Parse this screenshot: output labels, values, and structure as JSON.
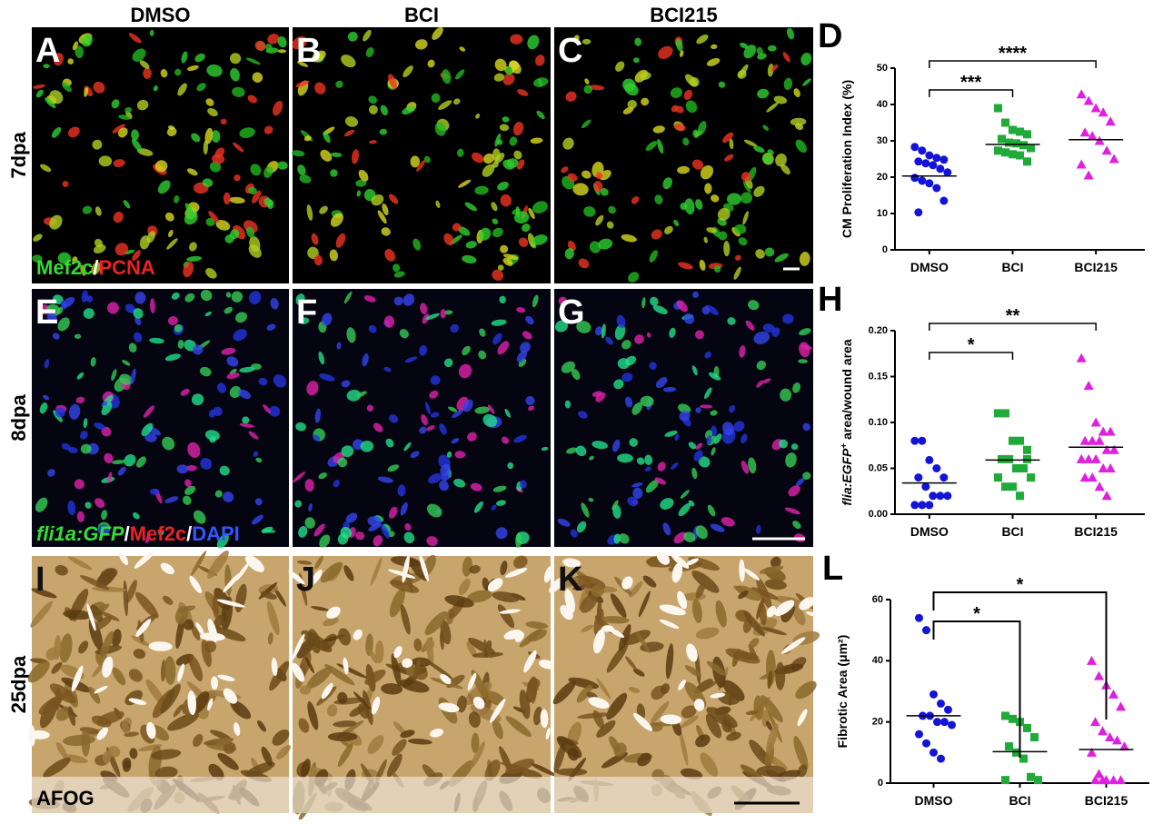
{
  "column_headers": [
    "DMSO",
    "BCI",
    "BCI215"
  ],
  "row_labels": [
    "7dpa",
    "8dpa",
    "25dpa"
  ],
  "image_panels": [
    "A",
    "B",
    "C",
    "E",
    "F",
    "G",
    "I",
    "J",
    "K"
  ],
  "stain_labels": [
    [
      {
        "text": "Mef2c",
        "color": "#33dd33"
      },
      {
        "text": "/",
        "color": "#ffffff"
      },
      {
        "text": "PCNA",
        "color": "#ee2222"
      }
    ],
    [
      {
        "text": "fli1a:GFP",
        "color": "#33dd33",
        "italic": true
      },
      {
        "text": "/",
        "color": "#ffffff"
      },
      {
        "text": "Mef2c",
        "color": "#ee2222"
      },
      {
        "text": "/",
        "color": "#ffffff"
      },
      {
        "text": "DAPI",
        "color": "#3355ff"
      }
    ],
    [
      {
        "text": "AFOG",
        "color": "#000000"
      }
    ]
  ],
  "chart_data": [
    {
      "type": "scatter",
      "panel_label": "D",
      "ylabel": "CM Proliferation Index (%)",
      "categories": [
        "DMSO",
        "BCI",
        "BCI215"
      ],
      "ylim": [
        0,
        50
      ],
      "yticks": [
        0,
        10,
        20,
        30,
        40,
        50
      ],
      "series": [
        {
          "color": "#1414d8",
          "marker": "circle",
          "values": [
            28.3,
            27.3,
            26,
            25.3,
            24.8,
            24.3,
            23.8,
            23.3,
            22.3,
            21.3,
            19.8,
            19,
            18.3,
            17,
            13.5,
            10.3
          ]
        },
        {
          "color": "#1faa3a",
          "marker": "square",
          "values": [
            39,
            35,
            33,
            32.5,
            31.8,
            30.5,
            29.5,
            29.3,
            28.8,
            28,
            27.3,
            26.8,
            26.3,
            26,
            24.3
          ]
        },
        {
          "color": "#e020e0",
          "marker": "triangle",
          "values": [
            42.8,
            41,
            39,
            37.8,
            35.3,
            32.3,
            31.3,
            30,
            27.3,
            25,
            23.5,
            20.5
          ]
        }
      ],
      "means": [
        20.3,
        29,
        30.3
      ],
      "brackets": [
        {
          "pair": [
            "DMSO",
            "BCI"
          ],
          "label": "***"
        },
        {
          "pair": [
            "DMSO",
            "BCI215"
          ],
          "label": "****"
        }
      ]
    },
    {
      "type": "scatter",
      "panel_label": "H",
      "ylabel_parts": [
        {
          "text": "flia:EGFP",
          "italic": true
        },
        {
          "text": "+",
          "sup": true
        },
        {
          "text": " area/wound area"
        }
      ],
      "categories": [
        "DMSO",
        "BCI",
        "BCI215"
      ],
      "ylim": [
        0,
        0.2
      ],
      "yticks": [
        {
          "value": 0,
          "label": "0.00"
        },
        {
          "value": 0.05,
          "label": "0.05"
        },
        {
          "value": 0.1,
          "label": "0.10"
        },
        {
          "value": 0.15,
          "label": "0.15"
        },
        {
          "value": 0.2,
          "label": "0.20"
        }
      ],
      "series": [
        {
          "color": "#1414d8",
          "marker": "circle",
          "values": [
            0.08,
            0.08,
            0.059,
            0.05,
            0.04,
            0.04,
            0.03,
            0.02,
            0.02,
            0.02,
            0.01,
            0.01,
            0.01
          ]
        },
        {
          "color": "#1faa3a",
          "marker": "square",
          "values": [
            0.11,
            0.11,
            0.08,
            0.08,
            0.07,
            0.06,
            0.06,
            0.05,
            0.05,
            0.04,
            0.04,
            0.03,
            0.03,
            0.02,
            0.06
          ]
        },
        {
          "color": "#e020e0",
          "marker": "triangle",
          "values": [
            0.17,
            0.14,
            0.1,
            0.09,
            0.09,
            0.08,
            0.08,
            0.08,
            0.07,
            0.07,
            0.06,
            0.06,
            0.06,
            0.05,
            0.05,
            0.04,
            0.04,
            0.03,
            0.02
          ]
        }
      ],
      "means": [
        0.034,
        0.059,
        0.073
      ],
      "brackets": [
        {
          "pair": [
            "DMSO",
            "BCI"
          ],
          "label": "*"
        },
        {
          "pair": [
            "DMSO",
            "BCI215"
          ],
          "label": "**"
        }
      ]
    },
    {
      "type": "scatter",
      "panel_label": "L",
      "ylabel": "Fibrotic Area (μm²)",
      "categories": [
        "DMSO",
        "BCI",
        "BCI215"
      ],
      "ylim": [
        0,
        60
      ],
      "yticks": [
        0,
        20,
        40,
        60
      ],
      "series": [
        {
          "color": "#1414d8",
          "marker": "circle",
          "values": [
            54,
            50,
            29,
            26,
            24,
            22,
            22,
            20,
            20,
            19,
            16,
            13,
            10,
            8
          ]
        },
        {
          "color": "#1faa3a",
          "marker": "square",
          "values": [
            22,
            21,
            20,
            18,
            15,
            12,
            10,
            8,
            2,
            1,
            1
          ]
        },
        {
          "color": "#e020e0",
          "marker": "triangle",
          "values": [
            40,
            35,
            32,
            29,
            25,
            20,
            17,
            15,
            14,
            12,
            10,
            3,
            1,
            1,
            1,
            1,
            1
          ]
        }
      ],
      "means": [
        22,
        10.3,
        11
      ],
      "brackets": [
        {
          "pair": [
            "DMSO",
            "BCI"
          ],
          "label": "*"
        },
        {
          "pair": [
            "DMSO",
            "BCI215"
          ],
          "label": "*"
        }
      ]
    }
  ]
}
